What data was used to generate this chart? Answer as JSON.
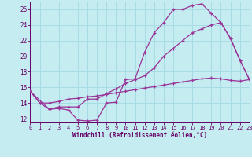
{
  "xlabel": "Windchill (Refroidissement éolien,°C)",
  "bg_color": "#c5ecf0",
  "grid_color": "#a8dce4",
  "line_color": "#993399",
  "xlim": [
    0,
    23
  ],
  "ylim": [
    11.5,
    27.0
  ],
  "yticks": [
    12,
    14,
    16,
    18,
    20,
    22,
    24,
    26
  ],
  "xticks": [
    0,
    1,
    2,
    3,
    4,
    5,
    6,
    7,
    8,
    9,
    10,
    11,
    12,
    13,
    14,
    15,
    16,
    17,
    18,
    19,
    20,
    21,
    22,
    23
  ],
  "line1_x": [
    0,
    1,
    2,
    3,
    4,
    5,
    6,
    7,
    8,
    9,
    10,
    11,
    12,
    13,
    14,
    15,
    16,
    17,
    18,
    19,
    20,
    21,
    22,
    23
  ],
  "line1_y": [
    15.5,
    14.0,
    13.2,
    13.3,
    13.1,
    11.8,
    11.7,
    11.8,
    14.0,
    14.1,
    17.0,
    17.1,
    20.5,
    23.0,
    24.3,
    26.0,
    26.0,
    26.5,
    26.7,
    25.5,
    24.3,
    22.3,
    19.5,
    17.0
  ],
  "line2_x": [
    0,
    2,
    3,
    4,
    5,
    6,
    7,
    8,
    9,
    10,
    11,
    12,
    13,
    14,
    15,
    16,
    17,
    18,
    19,
    20,
    21,
    22,
    23
  ],
  "line2_y": [
    15.5,
    13.2,
    13.5,
    13.5,
    13.5,
    14.5,
    14.5,
    15.2,
    15.8,
    16.5,
    17.0,
    17.5,
    18.5,
    20.0,
    21.0,
    22.0,
    23.0,
    23.5,
    24.0,
    24.3,
    22.3,
    19.5,
    17.0
  ],
  "line3_x": [
    0,
    1,
    2,
    3,
    4,
    5,
    6,
    7,
    8,
    9,
    10,
    11,
    12,
    13,
    14,
    15,
    16,
    17,
    18,
    19,
    20,
    21,
    22,
    23
  ],
  "line3_y": [
    15.5,
    14.0,
    14.0,
    14.2,
    14.5,
    14.6,
    14.8,
    14.9,
    15.1,
    15.3,
    15.5,
    15.7,
    15.9,
    16.1,
    16.3,
    16.5,
    16.7,
    16.9,
    17.1,
    17.2,
    17.1,
    16.9,
    16.8,
    17.0
  ],
  "tick_color": "#660066",
  "tick_fontsize": 5.0,
  "xlabel_fontsize": 5.5
}
